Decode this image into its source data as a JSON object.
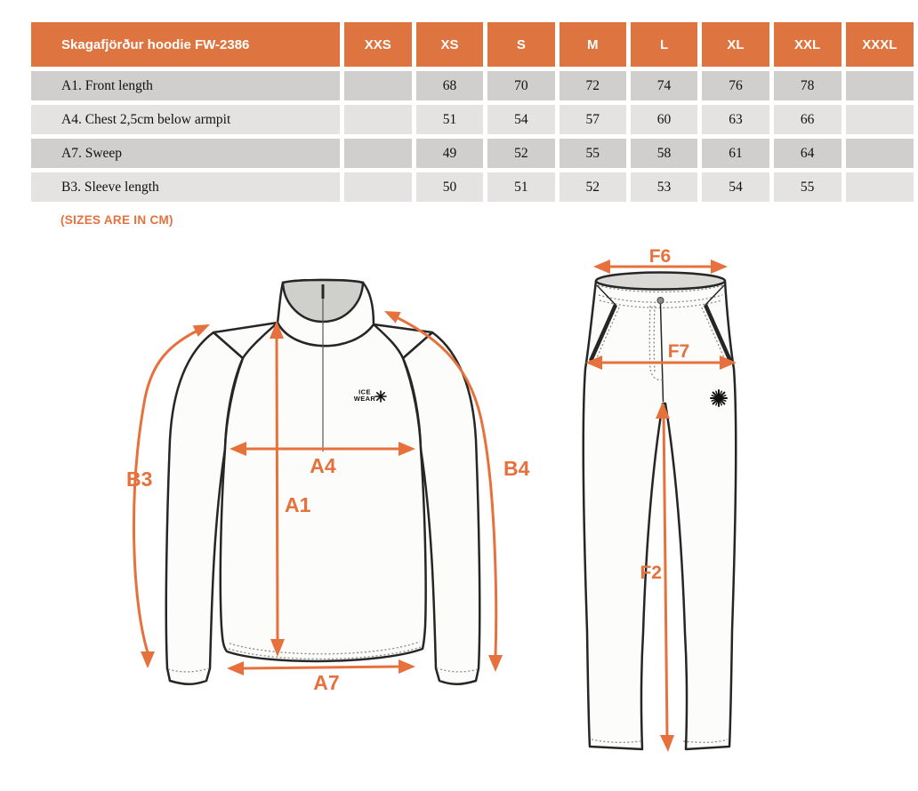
{
  "size_table": {
    "title": "Skagafjörður hoodie FW-2386",
    "columns": [
      "XXS",
      "XS",
      "S",
      "M",
      "L",
      "XL",
      "XXL",
      "XXXL"
    ],
    "rows": [
      {
        "label": "A1. Front length",
        "values": [
          "",
          "68",
          "70",
          "72",
          "74",
          "76",
          "78",
          ""
        ]
      },
      {
        "label": "A4. Chest 2,5cm below armpit",
        "values": [
          "",
          "51",
          "54",
          "57",
          "60",
          "63",
          "66",
          ""
        ]
      },
      {
        "label": "A7. Sweep",
        "values": [
          "",
          "49",
          "52",
          "55",
          "58",
          "61",
          "64",
          ""
        ]
      },
      {
        "label": "B3. Sleeve length",
        "values": [
          "",
          "50",
          "51",
          "52",
          "53",
          "54",
          "55",
          ""
        ]
      }
    ]
  },
  "note": "(SIZES ARE IN CM)",
  "colors": {
    "accent_orange": "#DE7440",
    "arrow_orange": "#E6713C",
    "row_dark": "#D0CFCD",
    "row_light": "#E4E3E1",
    "outline": "#262626"
  },
  "hoodie_diagram": {
    "measure_labels": {
      "a1": "A1",
      "a4": "A4",
      "a7": "A7",
      "b3": "B3",
      "b4": "B4"
    },
    "logo": {
      "line1": "ICE",
      "line2": "WEAR"
    }
  },
  "pants_diagram": {
    "measure_labels": {
      "f6": "F6",
      "f7": "F7",
      "f2": "F2"
    }
  }
}
